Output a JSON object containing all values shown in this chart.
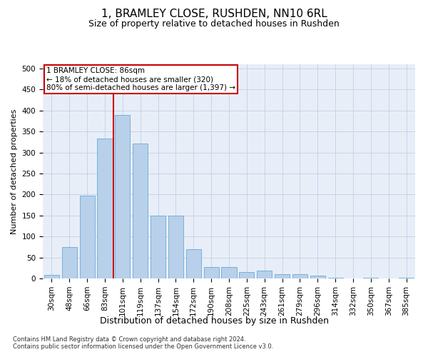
{
  "title": "1, BRAMLEY CLOSE, RUSHDEN, NN10 6RL",
  "subtitle": "Size of property relative to detached houses in Rushden",
  "xlabel": "Distribution of detached houses by size in Rushden",
  "ylabel": "Number of detached properties",
  "footer_line1": "Contains HM Land Registry data © Crown copyright and database right 2024.",
  "footer_line2": "Contains public sector information licensed under the Open Government Licence v3.0.",
  "categories": [
    "30sqm",
    "48sqm",
    "66sqm",
    "83sqm",
    "101sqm",
    "119sqm",
    "137sqm",
    "154sqm",
    "172sqm",
    "190sqm",
    "208sqm",
    "225sqm",
    "243sqm",
    "261sqm",
    "279sqm",
    "296sqm",
    "314sqm",
    "332sqm",
    "350sqm",
    "367sqm",
    "385sqm"
  ],
  "values": [
    8,
    75,
    197,
    333,
    390,
    322,
    149,
    149,
    70,
    28,
    28,
    15,
    19,
    10,
    10,
    6,
    2,
    0,
    1,
    0,
    1
  ],
  "bar_color": "#b8d0ea",
  "bar_edge_color": "#6aaad4",
  "vline_x": 3.5,
  "vline_color": "#cc0000",
  "annotation_text": "1 BRAMLEY CLOSE: 86sqm\n← 18% of detached houses are smaller (320)\n80% of semi-detached houses are larger (1,397) →",
  "annotation_box_color": "#ffffff",
  "annotation_box_edge_color": "#cc0000",
  "ylim": [
    0,
    510
  ],
  "yticks": [
    0,
    50,
    100,
    150,
    200,
    250,
    300,
    350,
    400,
    450,
    500
  ],
  "grid_color": "#c8d4e8",
  "bg_color": "#e8eef8",
  "title_fontsize": 11,
  "subtitle_fontsize": 9,
  "xlabel_fontsize": 9,
  "ylabel_fontsize": 8,
  "tick_fontsize": 7.5,
  "annotation_fontsize": 7.5,
  "footer_fontsize": 6
}
